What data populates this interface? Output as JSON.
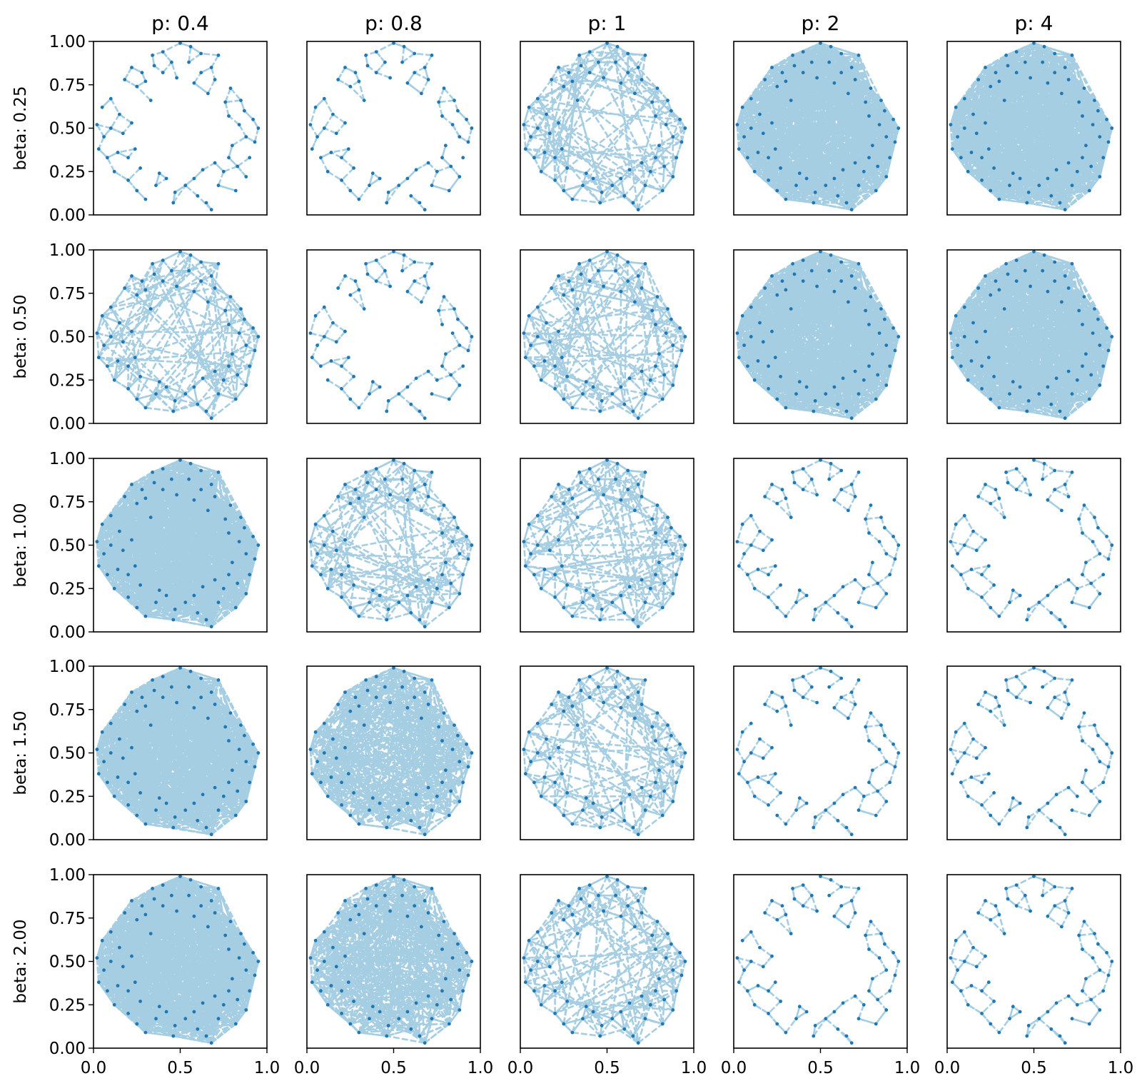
{
  "colors": {
    "edge": "#a6cee3",
    "node": "#1f78b4",
    "frame": "#000000"
  },
  "chart_data": {
    "type": "scatter",
    "layout": "grid",
    "rows": 5,
    "cols": 5,
    "column_titles": [
      "p: 0.4",
      "p: 0.8",
      "p: 1",
      "p: 2",
      "p: 4"
    ],
    "row_labels": [
      "beta: 0.25",
      "beta: 0.50",
      "beta: 1.00",
      "beta: 1.50",
      "beta: 2.00"
    ],
    "y_tick_labels": [
      "0.00",
      "0.25",
      "0.50",
      "0.75",
      "1.00"
    ],
    "x_tick_labels": [
      "0.0",
      "0.5",
      "1.0"
    ],
    "xlim": [
      0,
      1
    ],
    "ylim": [
      0,
      1
    ],
    "grid": false,
    "edge_style": "dashed",
    "density_levels": [
      "sparse",
      "medium",
      "dense",
      "filled"
    ],
    "panel_density": [
      [
        "sparse",
        "sparse",
        "medium",
        "filled",
        "filled"
      ],
      [
        "medium",
        "sparse",
        "medium",
        "filled",
        "filled"
      ],
      [
        "filled",
        "medium",
        "medium",
        "sparse",
        "sparse"
      ],
      [
        "filled",
        "dense",
        "medium",
        "sparse",
        "sparse"
      ],
      [
        "filled",
        "dense",
        "medium",
        "sparse",
        "sparse"
      ]
    ],
    "nodes": [
      [
        0.5,
        0.99
      ],
      [
        0.56,
        0.97
      ],
      [
        0.62,
        0.93
      ],
      [
        0.4,
        0.94
      ],
      [
        0.45,
        0.88
      ],
      [
        0.35,
        0.86
      ],
      [
        0.28,
        0.82
      ],
      [
        0.22,
        0.85
      ],
      [
        0.18,
        0.78
      ],
      [
        0.25,
        0.74
      ],
      [
        0.3,
        0.77
      ],
      [
        0.1,
        0.67
      ],
      [
        0.05,
        0.62
      ],
      [
        0.02,
        0.52
      ],
      [
        0.06,
        0.45
      ],
      [
        0.03,
        0.38
      ],
      [
        0.08,
        0.33
      ],
      [
        0.14,
        0.36
      ],
      [
        0.2,
        0.33
      ],
      [
        0.17,
        0.47
      ],
      [
        0.22,
        0.53
      ],
      [
        0.15,
        0.58
      ],
      [
        0.24,
        0.38
      ],
      [
        0.27,
        0.27
      ],
      [
        0.2,
        0.2
      ],
      [
        0.25,
        0.14
      ],
      [
        0.3,
        0.09
      ],
      [
        0.36,
        0.17
      ],
      [
        0.42,
        0.21
      ],
      [
        0.47,
        0.13
      ],
      [
        0.53,
        0.17
      ],
      [
        0.58,
        0.21
      ],
      [
        0.6,
        0.11
      ],
      [
        0.65,
        0.07
      ],
      [
        0.68,
        0.03
      ],
      [
        0.72,
        0.17
      ],
      [
        0.75,
        0.25
      ],
      [
        0.7,
        0.3
      ],
      [
        0.78,
        0.33
      ],
      [
        0.83,
        0.28
      ],
      [
        0.8,
        0.4
      ],
      [
        0.84,
        0.52
      ],
      [
        0.87,
        0.6
      ],
      [
        0.92,
        0.55
      ],
      [
        0.95,
        0.5
      ],
      [
        0.93,
        0.42
      ],
      [
        0.88,
        0.45
      ],
      [
        0.78,
        0.57
      ],
      [
        0.76,
        0.65
      ],
      [
        0.79,
        0.73
      ],
      [
        0.7,
        0.78
      ],
      [
        0.68,
        0.85
      ],
      [
        0.72,
        0.92
      ],
      [
        0.62,
        0.82
      ],
      [
        0.58,
        0.76
      ],
      [
        0.48,
        0.79
      ],
      [
        0.4,
        0.82
      ],
      [
        0.33,
        0.66
      ],
      [
        0.12,
        0.25
      ],
      [
        0.88,
        0.22
      ],
      [
        0.9,
        0.33
      ],
      [
        0.63,
        0.26
      ],
      [
        0.38,
        0.24
      ],
      [
        0.1,
        0.5
      ],
      [
        0.55,
        0.88
      ],
      [
        0.85,
        0.66
      ],
      [
        0.66,
        0.7
      ],
      [
        0.34,
        0.92
      ],
      [
        0.46,
        0.07
      ],
      [
        0.82,
        0.14
      ]
    ]
  }
}
